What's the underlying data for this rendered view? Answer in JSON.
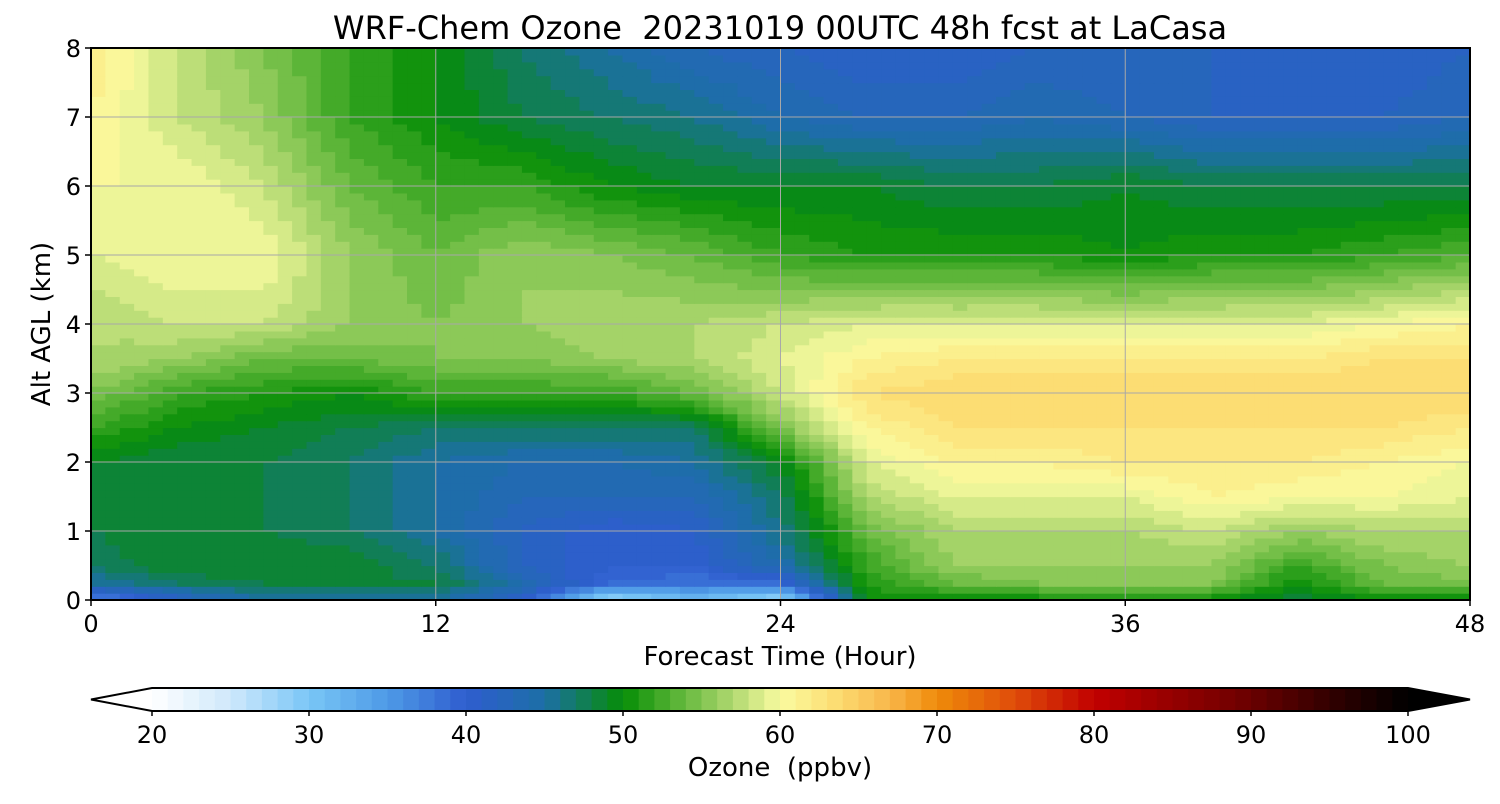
{
  "chart_data": {
    "type": "heatmap",
    "title": "WRF-Chem Ozone  20231019 00UTC 48h fcst at LaCasa",
    "xlabel": "Forecast Time (Hour)",
    "ylabel": "Alt AGL (km)",
    "xlim": [
      0,
      48
    ],
    "ylim": [
      0,
      8
    ],
    "xticks": [
      "0",
      "12",
      "24",
      "36",
      "48"
    ],
    "yticks": [
      "0",
      "1",
      "2",
      "3",
      "4",
      "5",
      "6",
      "7",
      "8"
    ],
    "grid": true,
    "x": [
      0,
      3,
      6,
      9,
      12,
      15,
      18,
      21,
      24,
      27,
      30,
      33,
      36,
      39,
      42,
      45,
      48
    ],
    "y": [
      0,
      0.25,
      0.5,
      1,
      1.5,
      2,
      2.5,
      3,
      3.5,
      4,
      5,
      6,
      7,
      8
    ],
    "z": [
      [
        36,
        41,
        45,
        45,
        45,
        41,
        27,
        31,
        27,
        50,
        50,
        50,
        50,
        50,
        48,
        50,
        50
      ],
      [
        45,
        47,
        48,
        48,
        48,
        44,
        39,
        38,
        39,
        51,
        54,
        55,
        55,
        55,
        50,
        54,
        55
      ],
      [
        47,
        49,
        49,
        49,
        47,
        42,
        40,
        40,
        44,
        52,
        56,
        56,
        56,
        56,
        52,
        55,
        56
      ],
      [
        48,
        49,
        48,
        47,
        45,
        42,
        40,
        41,
        46,
        54,
        57,
        57,
        57,
        58,
        56,
        57,
        57
      ],
      [
        49,
        49,
        48,
        47,
        45,
        43,
        43,
        43,
        47,
        57,
        59,
        59,
        59,
        61,
        60,
        60,
        59
      ],
      [
        49,
        48,
        48,
        47,
        45,
        44,
        44,
        45,
        49,
        59,
        61,
        61,
        62,
        62,
        62,
        61,
        60
      ],
      [
        52,
        50,
        49,
        48,
        47,
        47,
        47,
        47,
        55,
        61,
        63,
        63,
        63,
        63,
        63,
        63,
        62
      ],
      [
        55,
        52,
        51,
        50,
        52,
        52,
        52,
        54,
        58,
        63,
        64,
        64,
        64,
        64,
        64,
        64,
        64
      ],
      [
        57,
        56,
        54,
        54,
        55,
        55,
        56,
        57,
        59,
        61,
        62,
        62,
        62,
        62,
        62,
        63,
        63
      ],
      [
        57,
        58,
        58,
        56,
        55,
        56,
        57,
        57,
        58,
        59,
        59,
        59,
        59,
        59,
        59,
        60,
        61
      ],
      [
        59,
        60,
        60,
        56,
        54,
        56,
        55,
        54,
        52,
        51,
        51,
        51,
        50,
        51,
        51,
        52,
        53
      ],
      [
        60,
        60,
        58,
        54,
        52,
        52,
        50,
        49,
        49,
        49,
        48,
        48,
        49,
        48,
        48,
        48,
        48
      ],
      [
        61,
        58,
        56,
        52,
        50,
        48,
        47,
        46,
        44,
        43,
        43,
        44,
        43,
        42,
        42,
        42,
        43
      ],
      [
        62,
        58,
        55,
        52,
        50,
        47,
        45,
        43,
        42,
        41,
        41,
        42,
        42,
        42,
        41,
        41,
        42
      ]
    ],
    "colorbar": {
      "label": "Ozone  (ppbv)",
      "min": 20,
      "max": 100,
      "step": 1,
      "ticks": [
        "20",
        "30",
        "40",
        "50",
        "60",
        "70",
        "80",
        "90",
        "100"
      ],
      "extend": "both",
      "colormap": [
        [
          20,
          "#ffffff"
        ],
        [
          25,
          "#cfe8fb"
        ],
        [
          30,
          "#79c6f6"
        ],
        [
          35,
          "#4e9ae6"
        ],
        [
          40,
          "#2f5dcf"
        ],
        [
          45,
          "#1c6fa6"
        ],
        [
          50,
          "#068d06"
        ],
        [
          53,
          "#50b030"
        ],
        [
          57,
          "#b0d870"
        ],
        [
          60,
          "#f9fba0"
        ],
        [
          63,
          "#fde279"
        ],
        [
          67,
          "#f8b64a"
        ],
        [
          70,
          "#ef8b0a"
        ],
        [
          75,
          "#df4c0a"
        ],
        [
          80,
          "#c10000"
        ],
        [
          85,
          "#950000"
        ],
        [
          90,
          "#6a0000"
        ],
        [
          95,
          "#320000"
        ],
        [
          100,
          "#000000"
        ]
      ]
    }
  }
}
